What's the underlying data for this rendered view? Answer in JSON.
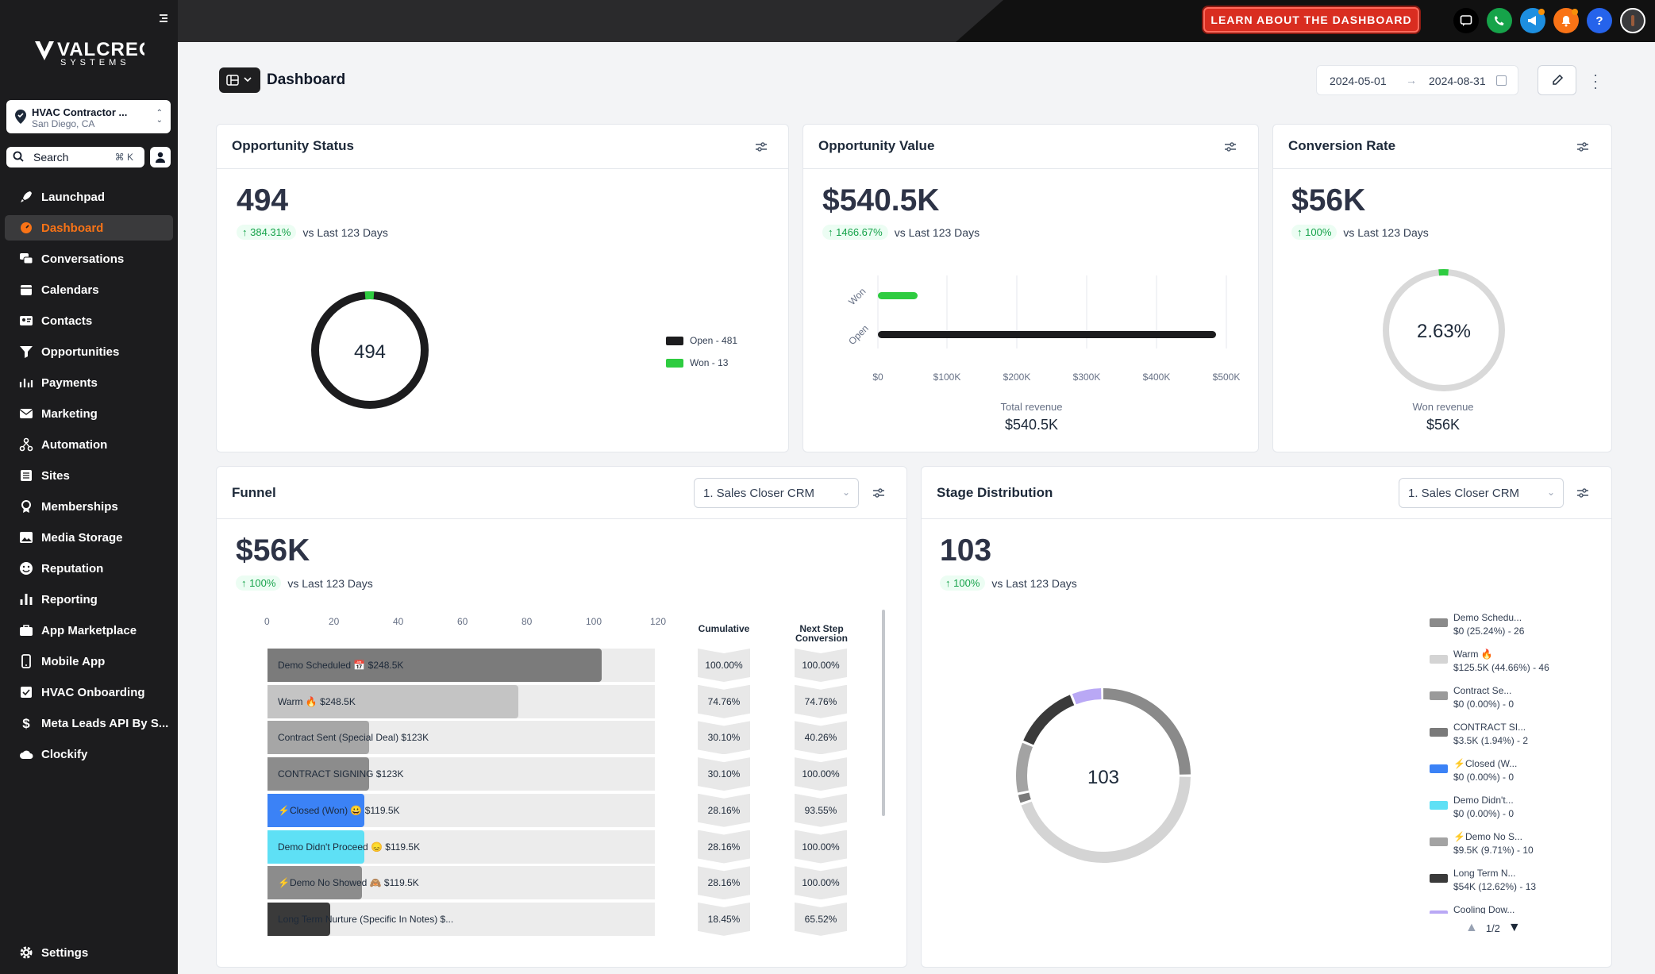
{
  "sidebar": {
    "brand": "VALCREO",
    "brand_sub": "SYSTEMS",
    "location": {
      "name": "HVAC Contractor ...",
      "city": "San Diego, CA"
    },
    "search": {
      "label": "Search",
      "shortcut": "⌘ K"
    },
    "items": [
      {
        "label": "Launchpad",
        "icon": "rocket-icon"
      },
      {
        "label": "Dashboard",
        "icon": "gauge-icon",
        "active": true
      },
      {
        "label": "Conversations",
        "icon": "chat-icon"
      },
      {
        "label": "Calendars",
        "icon": "calendar-icon"
      },
      {
        "label": "Contacts",
        "icon": "contact-card-icon"
      },
      {
        "label": "Opportunities",
        "icon": "filter-funnel-icon"
      },
      {
        "label": "Payments",
        "icon": "payments-icon"
      },
      {
        "label": "Marketing",
        "icon": "mail-icon"
      },
      {
        "label": "Automation",
        "icon": "workflow-icon"
      },
      {
        "label": "Sites",
        "icon": "sites-icon"
      },
      {
        "label": "Memberships",
        "icon": "badge-icon"
      },
      {
        "label": "Media Storage",
        "icon": "image-icon"
      },
      {
        "label": "Reputation",
        "icon": "smiley-icon"
      },
      {
        "label": "Reporting",
        "icon": "bar-chart-icon"
      },
      {
        "label": "App Marketplace",
        "icon": "briefcase-icon"
      },
      {
        "label": "Mobile App",
        "icon": "phone-icon"
      },
      {
        "label": "HVAC Onboarding",
        "icon": "checklist-icon"
      },
      {
        "label": "Meta Leads API By S...",
        "icon": "dollar-icon"
      },
      {
        "label": "Clockify",
        "icon": "cloud-icon"
      }
    ],
    "settings": "Settings"
  },
  "topbar": {
    "learn_button": "LEARN ABOUT THE DASHBOARD",
    "icons": [
      "chat-icon",
      "phone-icon",
      "megaphone-icon",
      "bell-icon",
      "help-icon",
      "user-avatar-icon"
    ]
  },
  "header": {
    "title": "Dashboard",
    "date_start": "2024-05-01",
    "date_end": "2024-08-31",
    "arrow": "→"
  },
  "opportunity_status": {
    "title": "Opportunity Status",
    "value": "494",
    "delta": "384.31%",
    "delta_text": "vs Last 123 Days",
    "center": "494",
    "legend": [
      {
        "label": "Open - 481",
        "color": "#1c1c1e"
      },
      {
        "label": "Won - 13",
        "color": "#2ecc40"
      }
    ]
  },
  "opportunity_value": {
    "title": "Opportunity Value",
    "value": "$540.5K",
    "delta": "1466.67%",
    "delta_text": "vs Last 123 Days",
    "categories": [
      "Won",
      "Open"
    ],
    "ticks": [
      "$0",
      "$100K",
      "$200K",
      "$300K",
      "$400K",
      "$500K"
    ],
    "total_label": "Total revenue",
    "total_value": "$540.5K"
  },
  "conversion_rate": {
    "title": "Conversion Rate",
    "value": "$56K",
    "delta": "100%",
    "delta_text": "vs Last 123 Days",
    "center": "2.63%",
    "sub_label": "Won revenue",
    "sub_value": "$56K"
  },
  "funnel": {
    "title": "Funnel",
    "pipeline": "1. Sales Closer CRM",
    "value": "$56K",
    "delta": "100%",
    "delta_text": "vs Last 123 Days",
    "axis_ticks": [
      "0",
      "20",
      "40",
      "60",
      "80",
      "100",
      "120"
    ],
    "col_cumulative": "Cumulative",
    "col_next_1": "Next Step",
    "col_next_2": "Conversion",
    "rows": [
      {
        "label": "Demo Scheduled 📅   $248.5K",
        "cumulative": "100.00%",
        "next": "100.00%"
      },
      {
        "label": "Warm 🔥   $248.5K",
        "cumulative": "74.76%",
        "next": "74.76%"
      },
      {
        "label": "Contract Sent (Special Deal)   $123K",
        "cumulative": "30.10%",
        "next": "40.26%"
      },
      {
        "label": "CONTRACT SIGNING   $123K",
        "cumulative": "30.10%",
        "next": "100.00%"
      },
      {
        "label": "⚡Closed (Won) 😀   $119.5K",
        "cumulative": "28.16%",
        "next": "93.55%"
      },
      {
        "label": "Demo Didn't Proceed 😞   $119.5K",
        "cumulative": "28.16%",
        "next": "100.00%"
      },
      {
        "label": "⚡Demo No Showed 🙈   $119.5K",
        "cumulative": "28.16%",
        "next": "100.00%"
      },
      {
        "label": "Long Term Nurture (Specific In Notes)   $...",
        "cumulative": "18.45%",
        "next": "65.52%"
      }
    ]
  },
  "stage_distribution": {
    "title": "Stage Distribution",
    "pipeline": "1. Sales Closer CRM",
    "value": "103",
    "delta": "100%",
    "delta_text": "vs Last 123 Days",
    "center": "103",
    "legend": [
      {
        "name": "Demo Schedu...",
        "detail": "$0 (25.24%) - 26",
        "color": "#8a8a8a"
      },
      {
        "name": "Warm 🔥",
        "detail": "$125.5K (44.66%) - 46",
        "color": "#d4d4d4"
      },
      {
        "name": "Contract Se...",
        "detail": "$0 (0.00%) - 0",
        "color": "#9a9a9a"
      },
      {
        "name": "CONTRACT SI...",
        "detail": "$3.5K (1.94%) - 2",
        "color": "#7a7a7a"
      },
      {
        "name": "⚡Closed (W...",
        "detail": "$0 (0.00%) - 0",
        "color": "#3b82f6"
      },
      {
        "name": "Demo Didn't...",
        "detail": "$0 (0.00%) - 0",
        "color": "#5ee0f5"
      },
      {
        "name": "⚡Demo No S...",
        "detail": "$9.5K (9.71%) - 10",
        "color": "#a3a3a3"
      },
      {
        "name": "Long Term N...",
        "detail": "$54K (12.62%) - 13",
        "color": "#3a3a3a"
      },
      {
        "name": "Cooling Dow...",
        "detail": "",
        "color": "#b9a8f5"
      }
    ],
    "page": "1/2"
  }
}
